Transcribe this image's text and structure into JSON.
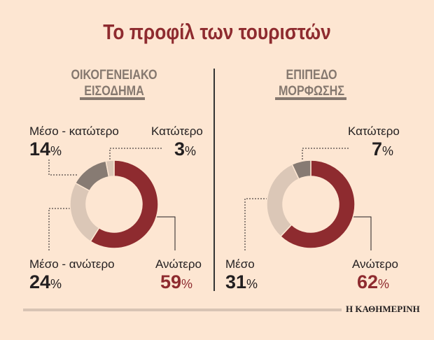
{
  "title": "Το προφίλ των τουριστών",
  "source": "Η ΚΑΘΗΜΕΡΙΝΗ",
  "chart_data": [
    {
      "type": "pie",
      "donut": true,
      "title": "ΟΙΚΟΓΕΝΕΙΑΚΟ ΕΙΣΟΔΗΜΑ",
      "slices": [
        {
          "label": "Ανώτερο",
          "value": 59,
          "display": "59",
          "color": "#8e2b2f"
        },
        {
          "label": "Μέσο - ανώτερο",
          "value": 24,
          "display": "24",
          "color": "#dbc7b7"
        },
        {
          "label": "Μέσο - κατώτερο",
          "value": 14,
          "display": "14",
          "color": "#877b73"
        },
        {
          "label": "Κατώτερο",
          "value": 3,
          "display": "3",
          "color": "#dbc7b7"
        }
      ]
    },
    {
      "type": "pie",
      "donut": true,
      "title": "ΕΠΙΠΕΔΟ ΜΟΡΦΩΣΗΣ",
      "slices": [
        {
          "label": "Ανώτερο",
          "value": 62,
          "display": "62",
          "color": "#8e2b2f"
        },
        {
          "label": "Μέσο",
          "value": 31,
          "display": "31",
          "color": "#dbc7b7"
        },
        {
          "label": "Κατώτερο",
          "value": 7,
          "display": "7",
          "color": "#877b73"
        }
      ]
    }
  ],
  "title_line1": [
    "ΟΙΚΟΓΕΝΕΙΑΚΟ",
    "ΕΠΙΠΕΔΟ"
  ],
  "title_line2": [
    "ΕΙΣΟΔΗΜΑ",
    "ΜΟΡΦΩΣΗΣ"
  ],
  "pct": "%"
}
